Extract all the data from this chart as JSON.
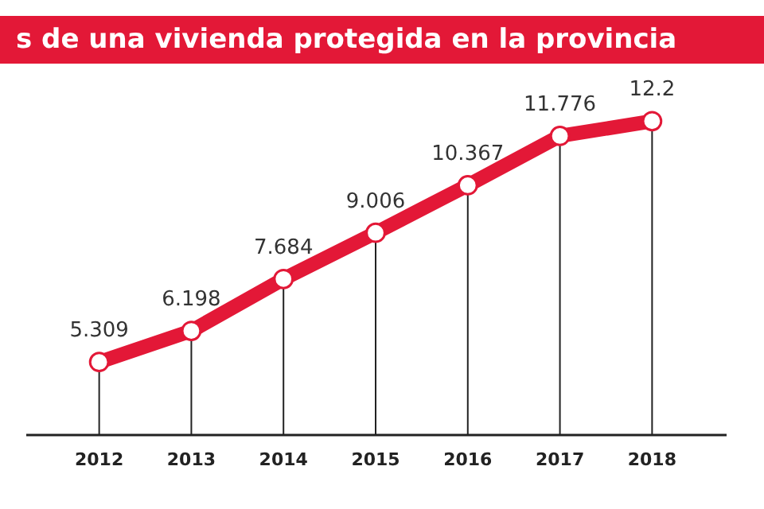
{
  "chart_data": {
    "type": "line",
    "title": "s de una vivienda protegida en la provincia",
    "categories": [
      "2012",
      "2013",
      "2014",
      "2015",
      "2016",
      "2017",
      "2018"
    ],
    "series": [
      {
        "color": "#e31837",
        "values": [
          5.309,
          6.198,
          7.684,
          9.006,
          10.367,
          11.776,
          12.2
        ]
      }
    ],
    "data_labels": true,
    "marker": "circle",
    "tick_labels": "x",
    "grid": "x",
    "legend": false
  }
}
